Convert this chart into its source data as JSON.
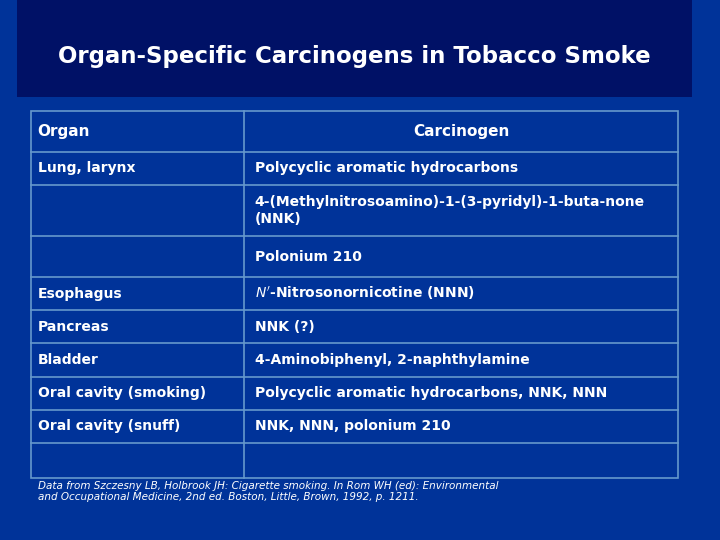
{
  "title": "Organ-Specific Carcinogens in Tobacco Smoke",
  "bg_color": "#003399",
  "bg_top_color": "#001155",
  "text_color": "#FFFFFF",
  "border_color": "#6699CC",
  "header_row": [
    "Organ",
    "Carcinogen"
  ],
  "rows": [
    [
      "Lung, larynx",
      "Polycyclic aromatic hydrocarbons"
    ],
    [
      "",
      "4-(Methylnitrosoamino)-1-(3-pyridyl)-1-buta-none\n(NNK)"
    ],
    [
      "",
      "Polonium 210"
    ],
    [
      "Esophagus",
      "$\\it{N'}$-Nitrosonornicotine (NNN)"
    ],
    [
      "Pancreas",
      "NNK (?)"
    ],
    [
      "Bladder",
      "4-Aminobiphenyl, 2-naphthylamine"
    ],
    [
      "Oral cavity (smoking)",
      "Polycyclic aromatic hydrocarbons, NNK, NNN"
    ],
    [
      "Oral cavity (snuff)",
      "NNK, NNN, polonium 210"
    ]
  ],
  "footnote": "Data from Szczesny LB, Holbrook JH: Cigarette smoking. In Rom WH (ed): Environmental\nand Occupational Medicine, 2nd ed. Boston, Little, Brown, 1992, p. 1211.",
  "col_split": 0.33
}
